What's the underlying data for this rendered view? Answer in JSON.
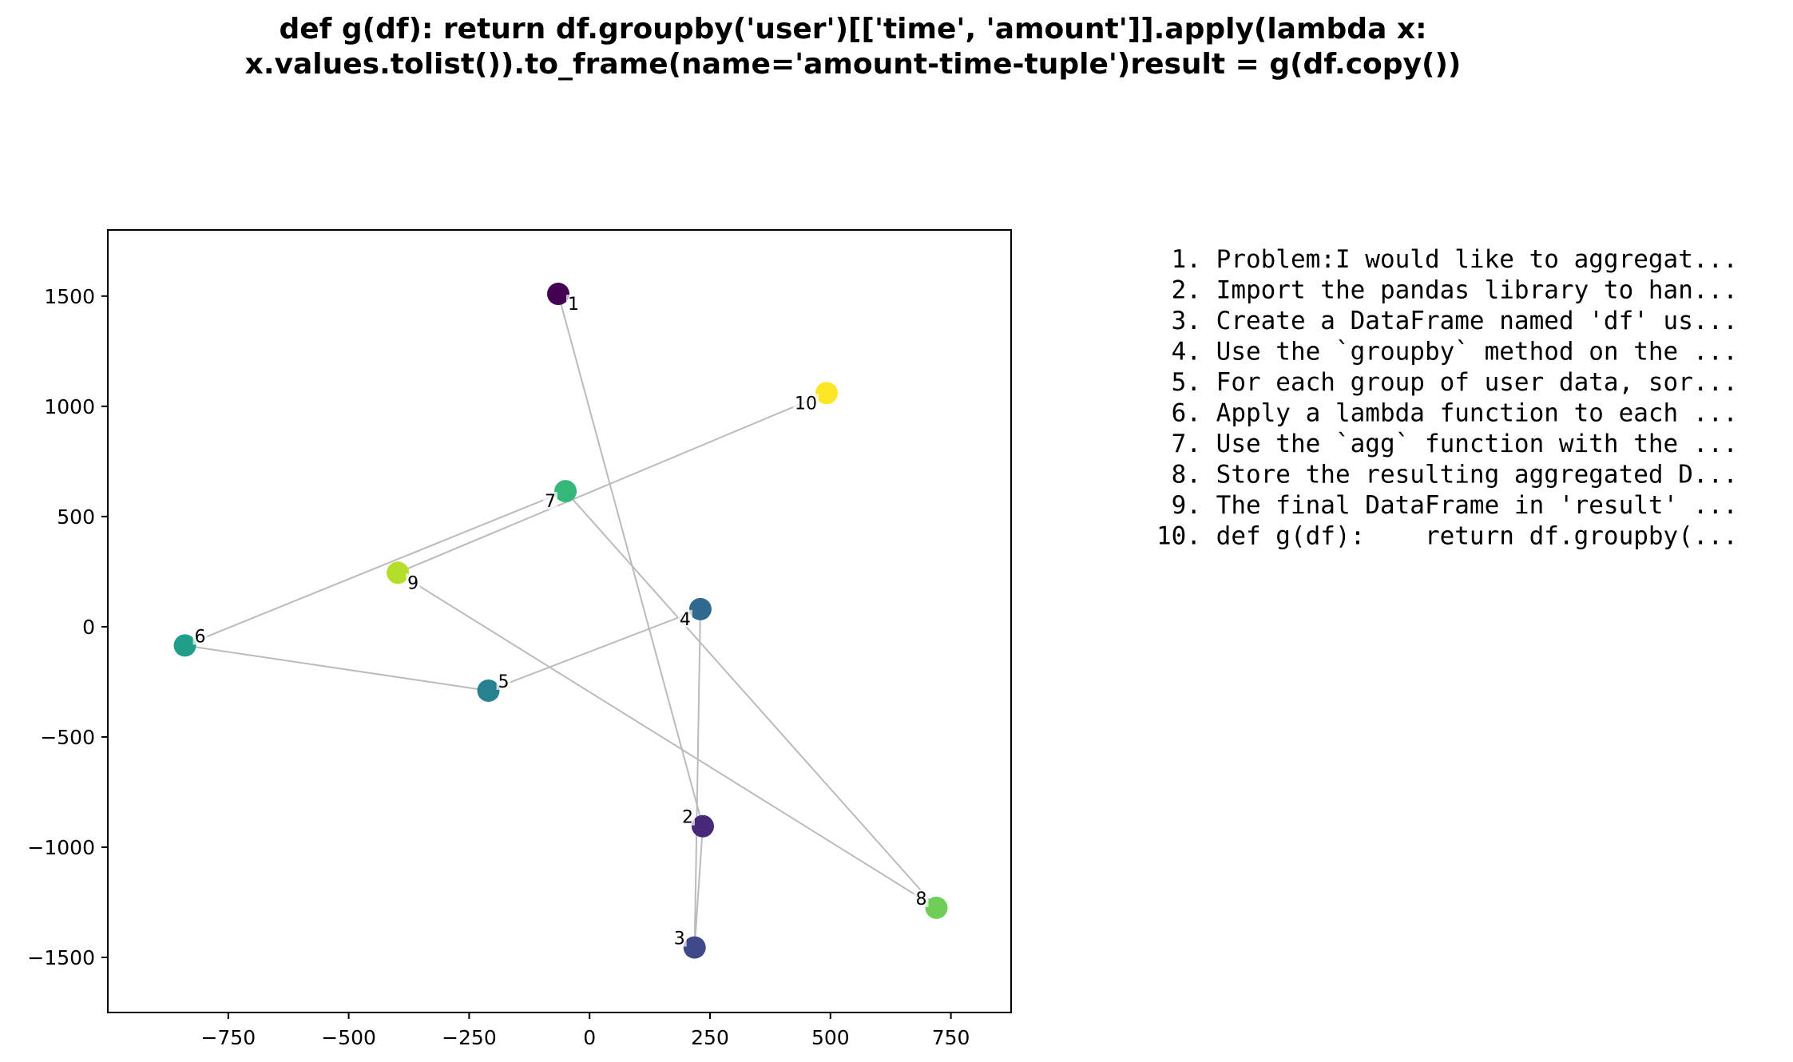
{
  "chart_data": {
    "type": "scatter",
    "title_lines": [
      "def g(df):    return df.groupby('user')[['time', 'amount']].apply(lambda x:",
      "x.values.tolist()).to_frame(name='amount-time-tuple')result = g(df.copy())"
    ],
    "xlabel": "",
    "ylabel": "",
    "xlim": [
      -1000,
      875
    ],
    "ylim": [
      -1750,
      1800
    ],
    "xticks": [
      -750,
      -500,
      -250,
      0,
      250,
      500,
      750
    ],
    "yticks": [
      -1500,
      -1000,
      -500,
      0,
      500,
      1000,
      1500
    ],
    "xtick_labels": [
      "−750",
      "−500",
      "−250",
      "0",
      "250",
      "500",
      "750"
    ],
    "ytick_labels": [
      "−1500",
      "−1000",
      "−500",
      "0",
      "500",
      "1000",
      "1500"
    ],
    "grid": false,
    "connect_in_order": true,
    "line_color": "#bbbbbb",
    "points": [
      {
        "label": "1",
        "x": -65,
        "y": 1510,
        "color": "#440154"
      },
      {
        "label": "2",
        "x": 235,
        "y": -905,
        "color": "#482878"
      },
      {
        "label": "3",
        "x": 218,
        "y": -1455,
        "color": "#3e4989"
      },
      {
        "label": "4",
        "x": 230,
        "y": 80,
        "color": "#31688e"
      },
      {
        "label": "5",
        "x": -210,
        "y": -290,
        "color": "#26828e"
      },
      {
        "label": "6",
        "x": -840,
        "y": -85,
        "color": "#1f9e89"
      },
      {
        "label": "7",
        "x": -50,
        "y": 615,
        "color": "#35b779"
      },
      {
        "label": "8",
        "x": 720,
        "y": -1275,
        "color": "#6ece58"
      },
      {
        "label": "9",
        "x": -398,
        "y": 245,
        "color": "#b5de2b"
      },
      {
        "label": "10",
        "x": 492,
        "y": 1060,
        "color": "#fde725"
      }
    ],
    "steps": [
      " 1. Problem:I would like to aggregat...",
      " 2. Import the pandas library to han...",
      " 3. Create a DataFrame named 'df' us...",
      " 4. Use the `groupby` method on the ...",
      " 5. For each group of user data, sor...",
      " 6. Apply a lambda function to each ...",
      " 7. Use the `agg` function with the ...",
      " 8. Store the resulting aggregated D...",
      " 9. The final DataFrame in 'result' ...",
      "10. def g(df):    return df.groupby(..."
    ]
  }
}
